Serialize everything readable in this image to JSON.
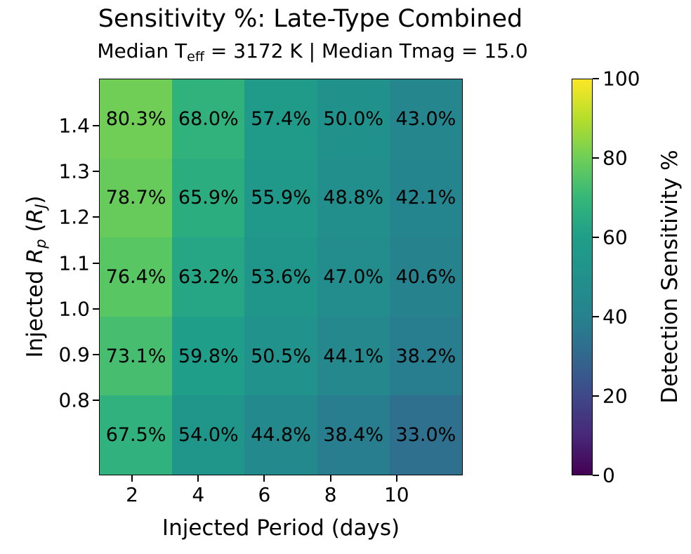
{
  "chart_data": {
    "type": "heatmap",
    "title": "Sensitivity %: Late-Type Combined",
    "subtitle_parts": [
      {
        "text": "Median T"
      },
      {
        "text": "eff",
        "style": "sub"
      },
      {
        "text": " = 3172 K | Median Tmag = 15.0"
      }
    ],
    "xlabel": "Injected Period (days)",
    "ylabel_parts": [
      {
        "text": "Injected "
      },
      {
        "text": "R",
        "style": "italic"
      },
      {
        "text": "p",
        "style": "italic-sub"
      },
      {
        "text": " ("
      },
      {
        "text": "R",
        "style": "italic"
      },
      {
        "text": "J",
        "style": "italic-sub"
      },
      {
        "text": ")"
      }
    ],
    "colorbar_label": "Detection Sensitivity %",
    "colormap": "viridis",
    "viridis_stops": [
      "#440154",
      "#482878",
      "#3e4989",
      "#31688e",
      "#26828e",
      "#21918c",
      "#1f9e89",
      "#35b779",
      "#6ece58",
      "#b5de2b",
      "#fde725"
    ],
    "vmin": 0,
    "vmax": 100,
    "xlim": [
      1,
      12
    ],
    "ylim": [
      0.636,
      1.503
    ],
    "x_ticks": [
      2,
      4,
      6,
      8,
      10
    ],
    "x_tick_labels": [
      "2",
      "4",
      "6",
      "8",
      "10"
    ],
    "y_ticks": [
      1.4,
      1.3,
      1.2,
      1.1,
      1.0,
      0.9,
      0.8
    ],
    "y_tick_labels": [
      "1.4",
      "1.3",
      "1.2",
      "1.1",
      "1.0",
      "0.9",
      "0.8"
    ],
    "colorbar_ticks": [
      0,
      20,
      40,
      60,
      80,
      100
    ],
    "colorbar_tick_labels": [
      "0",
      "20",
      "40",
      "60",
      "80",
      "100"
    ],
    "values": [
      [
        80.3,
        68.0,
        57.4,
        50.0,
        43.0
      ],
      [
        78.7,
        65.9,
        55.9,
        48.8,
        42.1
      ],
      [
        76.4,
        63.2,
        53.6,
        47.0,
        40.6
      ],
      [
        73.1,
        59.8,
        50.5,
        44.1,
        38.2
      ],
      [
        67.5,
        54.0,
        44.8,
        38.4,
        33.0
      ]
    ],
    "cell_labels": [
      [
        "80.3%",
        "68.0%",
        "57.4%",
        "50.0%",
        "43.0%"
      ],
      [
        "78.7%",
        "65.9%",
        "55.9%",
        "48.8%",
        "42.1%"
      ],
      [
        "76.4%",
        "63.2%",
        "53.6%",
        "47.0%",
        "40.6%"
      ],
      [
        "73.1%",
        "59.8%",
        "50.5%",
        "44.1%",
        "38.2%"
      ],
      [
        "67.5%",
        "54.0%",
        "44.8%",
        "38.4%",
        "33.0%"
      ]
    ],
    "legend_position": "right-colorbar",
    "grid": false
  }
}
